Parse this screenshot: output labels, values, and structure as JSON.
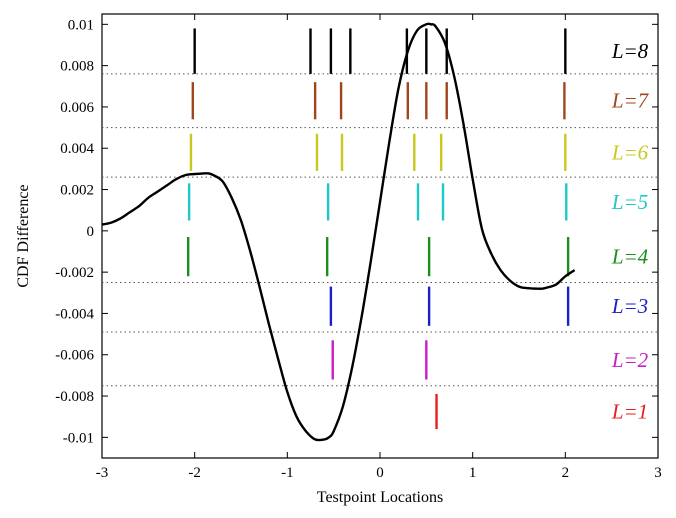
{
  "chart_data": {
    "type": "line",
    "xlabel": "Testpoint Locations",
    "ylabel": "CDF Difference",
    "xlim": [
      -3,
      3
    ],
    "ylim": [
      -0.011,
      0.0105
    ],
    "grid": false,
    "x_ticks": [
      {
        "value": -3,
        "label": "-3"
      },
      {
        "value": -2,
        "label": "-2"
      },
      {
        "value": -1,
        "label": "-1"
      },
      {
        "value": 0,
        "label": "0"
      },
      {
        "value": 1,
        "label": "1"
      },
      {
        "value": 2,
        "label": "2"
      },
      {
        "value": 3,
        "label": "3"
      }
    ],
    "y_ticks": [
      {
        "value": 0.01,
        "label": "0.01"
      },
      {
        "value": 0.008,
        "label": "0.008"
      },
      {
        "value": 0.006,
        "label": "0.006"
      },
      {
        "value": 0.004,
        "label": "0.004"
      },
      {
        "value": 0.002,
        "label": "0.002"
      },
      {
        "value": 0,
        "label": "0"
      },
      {
        "value": -0.002,
        "label": "-0.002"
      },
      {
        "value": -0.004,
        "label": "-0.004"
      },
      {
        "value": -0.006,
        "label": "-0.006"
      },
      {
        "value": -0.008,
        "label": "-0.008"
      },
      {
        "value": -0.01,
        "label": "-0.01"
      }
    ],
    "curve": {
      "color": "#000000",
      "x": [
        -3.0,
        -2.9,
        -2.8,
        -2.7,
        -2.6,
        -2.5,
        -2.4,
        -2.3,
        -2.2,
        -2.1,
        -2.0,
        -1.9,
        -1.85,
        -1.8,
        -1.7,
        -1.6,
        -1.5,
        -1.4,
        -1.3,
        -1.2,
        -1.1,
        -1.0,
        -0.9,
        -0.8,
        -0.7,
        -0.6,
        -0.55,
        -0.5,
        -0.4,
        -0.3,
        -0.2,
        -0.1,
        0.0,
        0.1,
        0.2,
        0.3,
        0.4,
        0.5,
        0.55,
        0.6,
        0.7,
        0.8,
        0.9,
        1.0,
        1.1,
        1.2,
        1.3,
        1.4,
        1.5,
        1.6,
        1.7,
        1.75,
        1.8,
        1.9,
        2.0,
        2.1
      ],
      "y": [
        0.0003,
        0.0004,
        0.0006,
        0.0009,
        0.0012,
        0.0016,
        0.0019,
        0.0022,
        0.0025,
        0.0027,
        0.00275,
        0.00278,
        0.00278,
        0.0027,
        0.0024,
        0.0016,
        0.0005,
        -0.001,
        -0.0027,
        -0.0045,
        -0.0062,
        -0.0078,
        -0.009,
        -0.0097,
        -0.0101,
        -0.0101,
        -0.01,
        -0.0097,
        -0.0085,
        -0.0066,
        -0.0042,
        -0.0015,
        0.0014,
        0.0043,
        0.0069,
        0.0087,
        0.0097,
        0.01,
        0.01,
        0.0099,
        0.0091,
        0.0075,
        0.0052,
        0.0025,
        0.0001,
        -0.0011,
        -0.0019,
        -0.0024,
        -0.0027,
        -0.00278,
        -0.0028,
        -0.0028,
        -0.00275,
        -0.0026,
        -0.0022,
        -0.0019
      ]
    },
    "levels": [
      {
        "label": "L=8",
        "color": "#000000",
        "band": [
          0.0076,
          0.0098
        ],
        "positions": [
          -2.0,
          -0.75,
          -0.53,
          -0.32,
          0.29,
          0.5,
          0.72,
          2.0
        ]
      },
      {
        "label": "L=7",
        "color": "#a0461e",
        "band": [
          0.0054,
          0.0072
        ],
        "positions": [
          -2.02,
          -0.7,
          -0.42,
          0.3,
          0.5,
          0.72,
          1.99
        ]
      },
      {
        "label": "L=6",
        "color": "#c8c81e",
        "band": [
          0.0029,
          0.0047
        ],
        "positions": [
          -2.04,
          -0.68,
          -0.41,
          0.37,
          0.66,
          2.0
        ]
      },
      {
        "label": "L=5",
        "color": "#1ec8c8",
        "band": [
          0.0005,
          0.0023
        ],
        "positions": [
          -2.06,
          -0.56,
          0.41,
          0.68,
          2.01
        ]
      },
      {
        "label": "L=4",
        "color": "#1e8c1e",
        "band": [
          -0.0022,
          -0.0003
        ],
        "positions": [
          -2.07,
          -0.57,
          0.53,
          2.03
        ]
      },
      {
        "label": "L=3",
        "color": "#1e1ec8",
        "band": [
          -0.0046,
          -0.0027
        ],
        "positions": [
          -0.53,
          0.53,
          2.03
        ]
      },
      {
        "label": "L=2",
        "color": "#c81ec8",
        "band": [
          -0.0072,
          -0.0053
        ],
        "positions": [
          -0.51,
          0.5
        ]
      },
      {
        "label": "L=1",
        "color": "#e61e1e",
        "band": [
          -0.0096,
          -0.0079
        ],
        "positions": [
          0.61
        ]
      }
    ],
    "dotted_separators": [
      0.0076,
      0.005,
      0.0026,
      -0.0025,
      -0.0049,
      -0.0075
    ]
  }
}
